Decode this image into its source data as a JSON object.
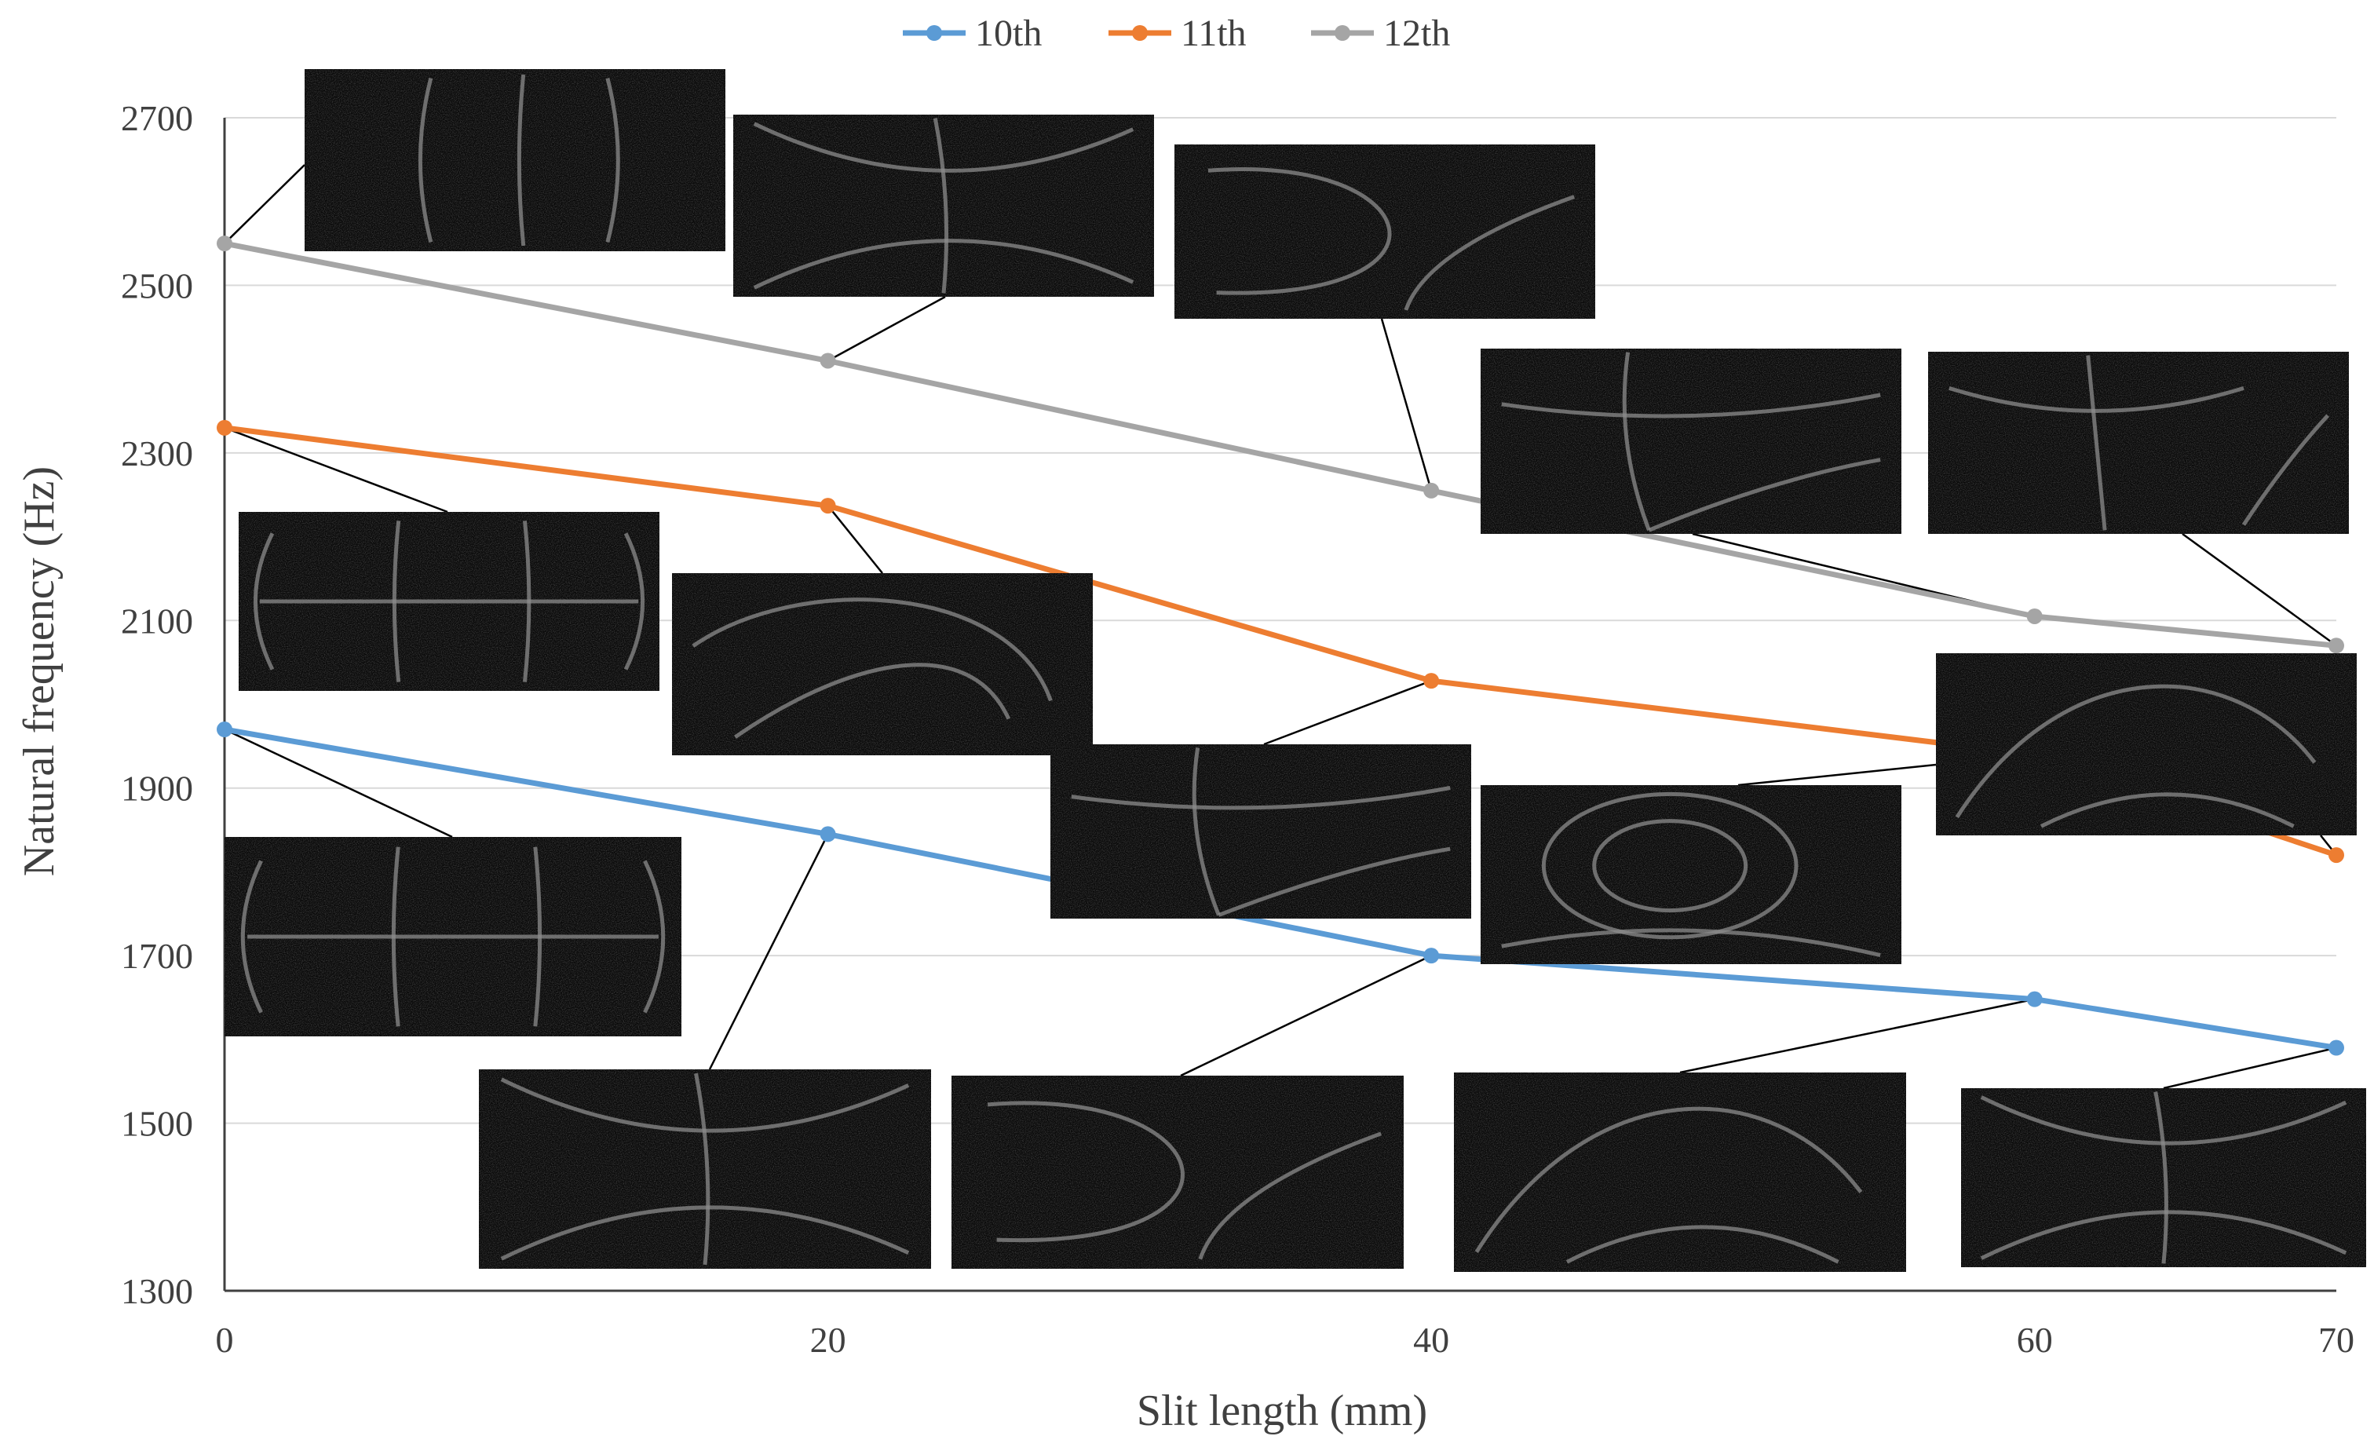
{
  "chart_data": {
    "type": "line",
    "title": "",
    "xlabel": "Slit length (mm)",
    "ylabel": "Natural frequency (Hz)",
    "categories": [
      "0",
      "20",
      "40",
      "60",
      "70"
    ],
    "ylim": [
      1300,
      2700
    ],
    "yticks": [
      "1300",
      "1500",
      "1700",
      "1900",
      "2100",
      "2300",
      "2500",
      "2700"
    ],
    "grid": true,
    "legend_position": "top-center",
    "series": [
      {
        "name": "10th",
        "color": "#5b9bd5",
        "values": [
          1970,
          1845,
          1700,
          1648,
          1590
        ]
      },
      {
        "name": "11th",
        "color": "#ed7d31",
        "values": [
          2330,
          2237,
          2028,
          1940,
          1820
        ]
      },
      {
        "name": "12th",
        "color": "#a5a5a5",
        "values": [
          2550,
          2410,
          2255,
          2105,
          2070
        ]
      }
    ],
    "annotations": "Chladni mode-shape photographs inset with leader lines to each data point"
  }
}
